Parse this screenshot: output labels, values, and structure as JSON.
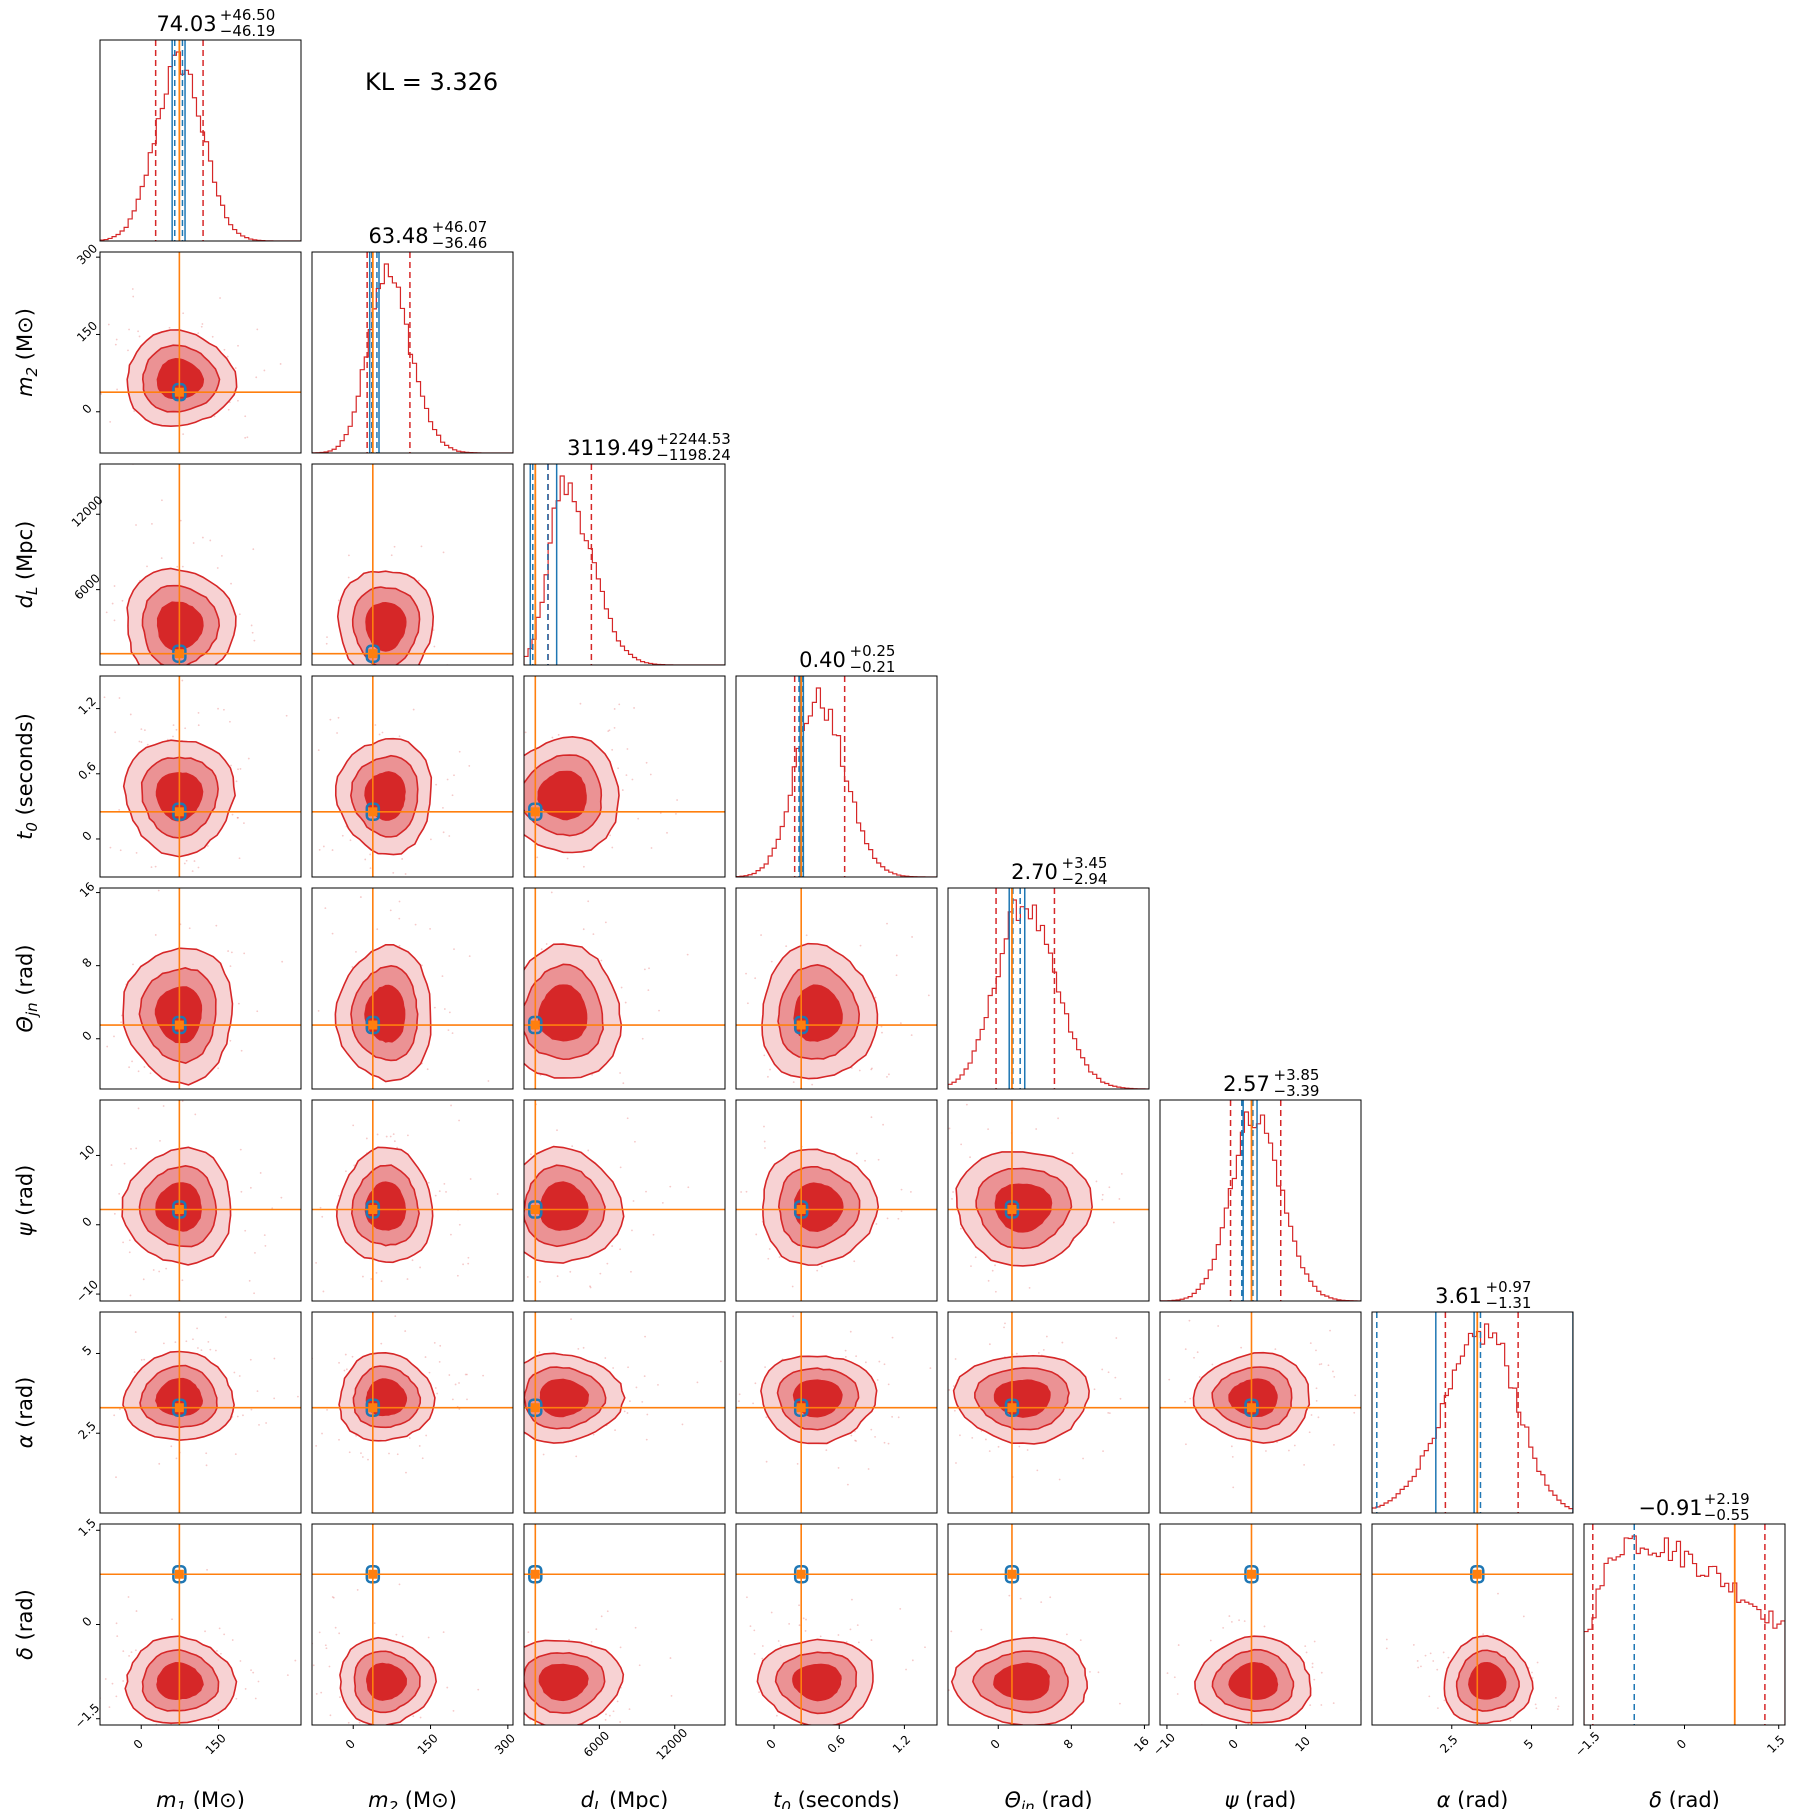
{
  "annotation": "KL = 3.326",
  "colors": {
    "posterior": "#d62728",
    "posterior_fill_1sigma": "#d62728",
    "posterior_fill_2sigma": "#eb9294",
    "posterior_fill_3sigma": "#f7d2d3",
    "comparison": "#1f77b4",
    "truth": "#ff7f0e"
  },
  "chart_data": {
    "type": "corner",
    "parameters": [
      {
        "key": "m1",
        "label_pre": "m",
        "label_sub": "1",
        "label_unit": "(M⊙)",
        "range": [
          -80,
          310
        ],
        "ticks": [
          0,
          150
        ],
        "truth": 74,
        "summary": {
          "median": "74.03",
          "plus": "+46.50",
          "minus": "−46.19"
        },
        "med": 74,
        "lo": 28,
        "hi": 120,
        "sd": 46,
        "blue_lines": [
          60,
          85
        ],
        "blue_dashed": [
          65,
          80
        ]
      },
      {
        "key": "m2",
        "label_pre": "m",
        "label_sub": "2",
        "label_unit": "(M⊙)",
        "range": [
          -80,
          310
        ],
        "ticks": [
          0,
          150,
          300
        ],
        "truth": 38,
        "summary": {
          "median": "63.48",
          "plus": "+46.07",
          "minus": "−36.46"
        },
        "med": 63,
        "lo": 27,
        "hi": 110,
        "sd": 40,
        "blue_lines": [
          32,
          50
        ],
        "blue_dashed": [
          36,
          46
        ]
      },
      {
        "key": "dL",
        "label_pre": "d",
        "label_sub": "L",
        "label_unit": "(Mpc)",
        "range": [
          0,
          16000
        ],
        "ticks": [
          6000,
          12000
        ],
        "tick_labels_y": [
          6000,
          12000
        ],
        "truth": 900,
        "summary": {
          "median": "3119.49",
          "plus": "+2244.53",
          "minus": "−1198.24"
        },
        "med": 3119,
        "lo": 1921,
        "hi": 5364,
        "sd": 2000,
        "blue_lines": [
          500,
          2600
        ],
        "blue_dashed": [
          700,
          1900
        ]
      },
      {
        "key": "t0",
        "label_pre": "t",
        "label_sub": "0",
        "label_unit": "(seconds)",
        "range": [
          -0.35,
          1.5
        ],
        "ticks": [
          0.0,
          0.6,
          1.2
        ],
        "truth": 0.25,
        "summary": {
          "median": "0.40",
          "plus": "+0.25",
          "minus": "−0.21"
        },
        "med": 0.4,
        "lo": 0.19,
        "hi": 0.65,
        "sd": 0.23,
        "blue_lines": [
          0.24,
          0.27
        ],
        "blue_dashed": [
          0.23,
          0.26
        ]
      },
      {
        "key": "theta",
        "label_pre": "Θ",
        "label_sub": "jn",
        "label_unit": "(rad)",
        "range": [
          -5.5,
          16.5
        ],
        "ticks": [
          0,
          8,
          16
        ],
        "truth": 1.5,
        "summary": {
          "median": "2.70",
          "plus": "+3.45",
          "minus": "−2.94"
        },
        "med": 2.7,
        "lo": -0.24,
        "hi": 6.15,
        "sd": 3.2,
        "blue_lines": [
          1.2,
          2.9
        ],
        "blue_dashed": [
          1.6,
          2.4
        ]
      },
      {
        "key": "psi",
        "label_pre": "ψ",
        "label_sub": "",
        "label_unit": "(rad)",
        "range": [
          -11,
          18
        ],
        "ticks": [
          -10,
          0,
          10
        ],
        "truth": 2.2,
        "summary": {
          "median": "2.57",
          "plus": "+3.85",
          "minus": "−3.39"
        },
        "med": 2.57,
        "lo": -0.82,
        "hi": 6.42,
        "sd": 3.6,
        "blue_lines": [
          1.0,
          3.0
        ],
        "blue_dashed": [
          0.8,
          2.4
        ]
      },
      {
        "key": "alpha",
        "label_pre": "α",
        "label_sub": "",
        "label_unit": "(rad)",
        "range": [
          0,
          6.3
        ],
        "ticks": [
          2.5,
          5.0
        ],
        "truth": 3.3,
        "summary": {
          "median": "3.61",
          "plus": "+0.97",
          "minus": "−1.31"
        },
        "med": 3.61,
        "lo": 2.3,
        "hi": 4.58,
        "sd": 0.6,
        "blue_lines": [
          2.0,
          3.2,
          6.3
        ],
        "blue_dashed": [
          0.15,
          3.4
        ]
      },
      {
        "key": "delta",
        "label_pre": "δ",
        "label_sub": "",
        "label_unit": "(rad)",
        "range": [
          -1.6,
          1.6
        ],
        "ticks": [
          -1.5,
          0.0,
          1.5
        ],
        "truth": 0.8,
        "summary": {
          "median": "−0.91",
          "plus": "+2.19",
          "minus": "−0.55"
        },
        "med": -0.91,
        "lo": -1.46,
        "hi": 1.28,
        "sd": 0.3,
        "blue_lines": [],
        "blue_dashed": [
          -0.8,
          0.8
        ]
      }
    ]
  }
}
